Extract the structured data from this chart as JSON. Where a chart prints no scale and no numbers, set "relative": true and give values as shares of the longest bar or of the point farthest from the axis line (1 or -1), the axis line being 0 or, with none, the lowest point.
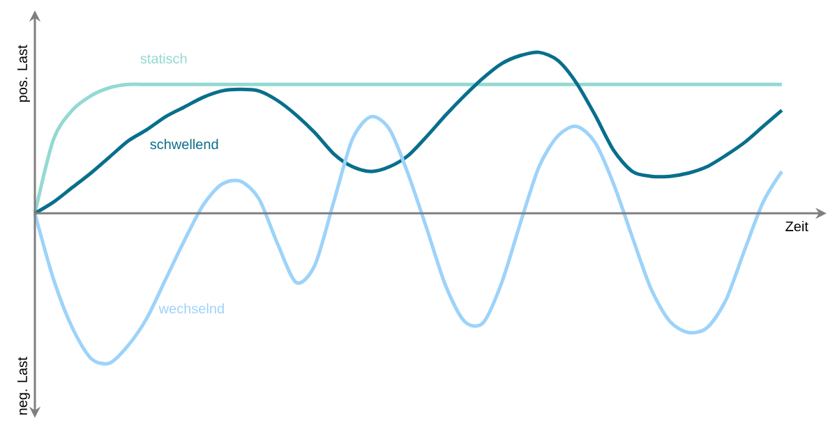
{
  "chart_data": {
    "type": "line",
    "relative": true,
    "xlabel": "Zeit",
    "annotations": [
      "pos. Last",
      "neg. Last"
    ],
    "categories": [
      null,
      null,
      null,
      null,
      null,
      null,
      null,
      null,
      null,
      null,
      null,
      null,
      null,
      null,
      null,
      null,
      null,
      null,
      null,
      null,
      null,
      null,
      null,
      null,
      null,
      null,
      null,
      null,
      null,
      null,
      null,
      null,
      null,
      null,
      null,
      null,
      null,
      null,
      null,
      null,
      null
    ],
    "series": [
      {
        "name": "statisch",
        "color": "#94d9d3",
        "values": [
          0,
          0.46,
          0.64,
          0.73,
          0.78,
          0.8,
          0.8,
          0.8,
          0.8,
          0.8,
          0.8,
          0.8,
          0.8,
          0.8,
          0.8,
          0.8,
          0.8,
          0.8,
          0.8,
          0.8,
          0.8,
          0.8,
          0.8,
          0.8,
          0.8,
          0.8,
          0.8,
          0.8,
          0.8,
          0.8,
          0.8,
          0.8,
          0.8,
          0.8,
          0.8,
          0.8,
          0.8,
          0.8,
          0.8,
          0.8,
          0.8
        ]
      },
      {
        "name": "schwellend",
        "color": "#086f8c",
        "values": [
          0,
          0.07,
          0.16,
          0.25,
          0.35,
          0.45,
          0.52,
          0.6,
          0.66,
          0.72,
          0.76,
          0.77,
          0.76,
          0.7,
          0.61,
          0.5,
          0.37,
          0.29,
          0.26,
          0.29,
          0.36,
          0.48,
          0.61,
          0.73,
          0.84,
          0.93,
          0.98,
          1,
          0.95,
          0.81,
          0.61,
          0.39,
          0.26,
          0.23,
          0.23,
          0.25,
          0.29,
          0.36,
          0.44,
          0.54,
          0.64
        ]
      },
      {
        "name": "wechselnd",
        "color": "#9dd3fa",
        "values": [
          0,
          -0.41,
          -0.71,
          -0.9,
          -0.93,
          -0.82,
          -0.65,
          -0.41,
          -0.17,
          0.05,
          0.18,
          0.2,
          0.09,
          -0.19,
          -0.43,
          -0.32,
          0.07,
          0.46,
          0.6,
          0.52,
          0.24,
          -0.1,
          -0.45,
          -0.67,
          -0.68,
          -0.43,
          -0.06,
          0.29,
          0.48,
          0.54,
          0.44,
          0.18,
          -0.15,
          -0.47,
          -0.67,
          -0.74,
          -0.71,
          -0.54,
          -0.23,
          0.07,
          0.26
        ]
      }
    ]
  }
}
